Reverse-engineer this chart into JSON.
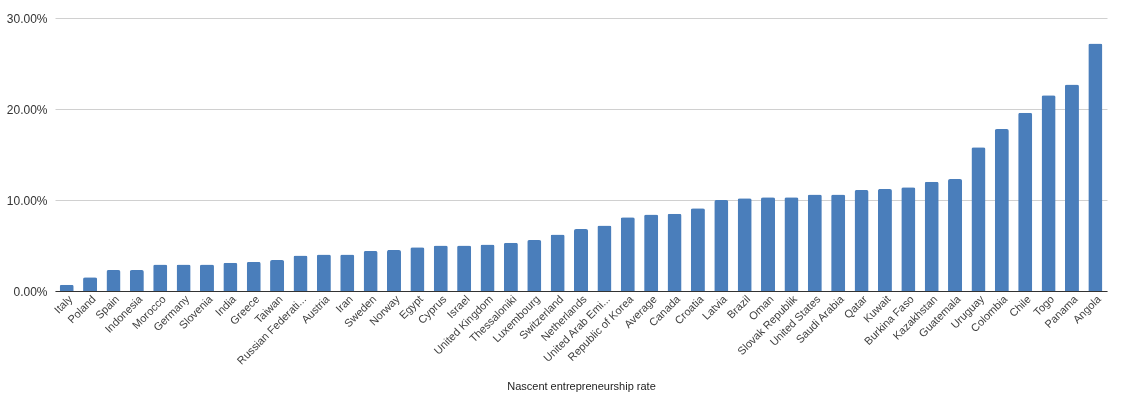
{
  "chart_data": {
    "type": "bar",
    "xlabel": "Nascent entrepreneurship rate",
    "categories": [
      "Italy",
      "Poland",
      "Spain",
      "Indonesia",
      "Morocco",
      "Germany",
      "Slovenia",
      "India",
      "Greece",
      "Taiwan",
      "Russian Federati...",
      "Austria",
      "Iran",
      "Sweden",
      "Norway",
      "Egypt",
      "Cyprus",
      "Israel",
      "United Kingdom",
      "Thessaloniki",
      "Luxembourg",
      "Switzerland",
      "Netherlands",
      "United Arab Emi...",
      "Republic of Korea",
      "Average",
      "Canada",
      "Croatia",
      "Latvia",
      "Brazil",
      "Oman",
      "Slovak Republik",
      "United States",
      "Saudi Arabia",
      "Qatar",
      "Kuwait",
      "Burkina Faso",
      "Kazakhstan",
      "Guatemala",
      "Uruguay",
      "Colombia",
      "Chile",
      "Togo",
      "Panama",
      "Angola"
    ],
    "values": [
      0.7,
      1.5,
      2.3,
      2.3,
      2.9,
      2.9,
      2.9,
      3.1,
      3.2,
      3.4,
      3.9,
      4.0,
      4.0,
      4.4,
      4.5,
      4.8,
      5.0,
      5.0,
      5.1,
      5.3,
      5.6,
      6.2,
      6.8,
      7.2,
      8.1,
      8.4,
      8.5,
      9.1,
      10.0,
      10.2,
      10.3,
      10.3,
      10.6,
      10.6,
      11.1,
      11.2,
      11.4,
      12.0,
      12.3,
      15.8,
      17.8,
      19.6,
      21.5,
      22.7,
      27.2
    ],
    "color": "#4a7ebb",
    "ylim": [
      0,
      30
    ],
    "yticks": [
      {
        "value": 0,
        "label": "0.00%"
      },
      {
        "value": 10,
        "label": "10.00%"
      },
      {
        "value": 20,
        "label": "20.00%"
      },
      {
        "value": 30,
        "label": "30.00%"
      }
    ],
    "grid": "y"
  }
}
